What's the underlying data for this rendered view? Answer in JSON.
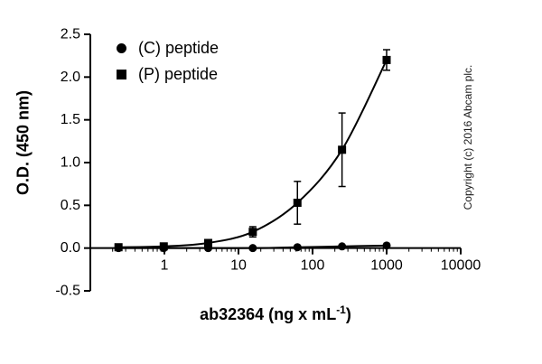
{
  "chart_data": {
    "type": "scatter",
    "x_scale": "log",
    "x": [
      0.24,
      0.98,
      3.9,
      15.6,
      62.5,
      250,
      1000
    ],
    "series": [
      {
        "name": "(C) peptide",
        "marker": "circle",
        "values": [
          0.0,
          0.0,
          0.0,
          0.0,
          0.01,
          0.02,
          0.03
        ],
        "errors": [
          0,
          0,
          0,
          0,
          0,
          0,
          0
        ]
      },
      {
        "name": "(P) peptide",
        "marker": "square",
        "values": [
          0.01,
          0.02,
          0.06,
          0.19,
          0.53,
          1.15,
          2.2
        ],
        "errors": [
          0.02,
          0.02,
          0.03,
          0.06,
          0.25,
          0.43,
          0.12
        ]
      }
    ],
    "xlabel_main": "ab32364 (ng x mL",
    "xlabel_sup": "-1",
    "xlabel_close": ")",
    "ylabel": "O.D. (450 nm)",
    "xlim": [
      0.1,
      10000
    ],
    "ylim": [
      -0.5,
      2.5
    ],
    "y_ticks": [
      -0.5,
      0.0,
      0.5,
      1.0,
      1.5,
      2.0,
      2.5
    ],
    "x_major_ticks": [
      1,
      10,
      100,
      1000,
      10000
    ],
    "grid": false,
    "legend_position": "top-left-inside"
  },
  "copyright": "Copyright (c) 2016 Abcam plc.",
  "colors": {
    "series": "#000000",
    "axis": "#000000",
    "background": "#ffffff"
  }
}
